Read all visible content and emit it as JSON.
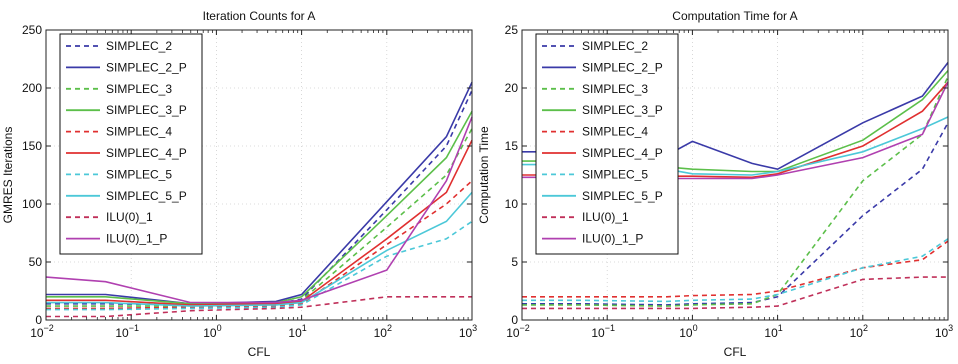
{
  "chart_data": [
    {
      "type": "line",
      "title": "Iteration Counts for A",
      "xlabel": "CFL",
      "ylabel": "GMRES Iterations",
      "xscale": "log",
      "xlim": [
        0.01,
        1000
      ],
      "ylim": [
        0,
        250
      ],
      "yticks": [
        0,
        50,
        100,
        150,
        200,
        250
      ],
      "grid": true,
      "legend_position": "top-left",
      "x": [
        0.01,
        0.05,
        0.5,
        5,
        10,
        100,
        500,
        1000
      ],
      "series": [
        {
          "name": "SIMPLEC_2",
          "color": "#3a3aa8",
          "dash": true,
          "values": [
            14,
            14,
            13,
            14,
            18,
            95,
            150,
            198
          ]
        },
        {
          "name": "SIMPLEC_2_P",
          "color": "#3a3aa8",
          "dash": false,
          "values": [
            22,
            22,
            14,
            16,
            22,
            102,
            158,
            205
          ]
        },
        {
          "name": "SIMPLEC_3",
          "color": "#5cbf4a",
          "dash": true,
          "values": [
            12,
            12,
            12,
            13,
            17,
            80,
            125,
            165
          ]
        },
        {
          "name": "SIMPLEC_3_P",
          "color": "#5cbf4a",
          "dash": false,
          "values": [
            20,
            20,
            14,
            15,
            20,
            90,
            140,
            180
          ]
        },
        {
          "name": "SIMPLEC_4",
          "color": "#e03030",
          "dash": true,
          "values": [
            10,
            10,
            11,
            12,
            14,
            65,
            100,
            120
          ]
        },
        {
          "name": "SIMPLEC_4_P",
          "color": "#e03030",
          "dash": false,
          "values": [
            17,
            17,
            13,
            14,
            16,
            70,
            110,
            155
          ]
        },
        {
          "name": "SIMPLEC_5",
          "color": "#4cc8d8",
          "dash": true,
          "values": [
            9,
            9,
            10,
            11,
            13,
            55,
            70,
            85
          ]
        },
        {
          "name": "SIMPLEC_5_P",
          "color": "#4cc8d8",
          "dash": false,
          "values": [
            15,
            15,
            12,
            13,
            15,
            60,
            85,
            110
          ]
        },
        {
          "name": "ILU(0)_1",
          "color": "#c0305a",
          "dash": true,
          "values": [
            3,
            3,
            8,
            10,
            11,
            20,
            20,
            20
          ]
        },
        {
          "name": "ILU(0)_1_P",
          "color": "#b040b0",
          "dash": false,
          "values": [
            37,
            33,
            15,
            15,
            17,
            43,
            120,
            175
          ]
        }
      ]
    },
    {
      "type": "line",
      "title": "Computation Time for A",
      "xlabel": "CFL",
      "ylabel": "Computation Time",
      "xscale": "log",
      "xlim": [
        0.01,
        1000
      ],
      "ylim": [
        0,
        25
      ],
      "yticks": [
        0,
        5,
        10,
        15,
        20,
        25
      ],
      "grid": true,
      "legend_position": "top-left",
      "x": [
        0.01,
        0.05,
        0.5,
        1,
        5,
        10,
        100,
        500,
        1000
      ],
      "series": [
        {
          "name": "SIMPLEC_2",
          "color": "#3a3aa8",
          "dash": true,
          "values": [
            1.4,
            1.4,
            1.3,
            1.4,
            1.5,
            2.0,
            9,
            13,
            17
          ]
        },
        {
          "name": "SIMPLEC_2_P",
          "color": "#3a3aa8",
          "dash": false,
          "values": [
            14.5,
            14.5,
            14.2,
            15.4,
            13.5,
            13.0,
            17,
            19.3,
            22.2
          ]
        },
        {
          "name": "SIMPLEC_3",
          "color": "#5cbf4a",
          "dash": true,
          "values": [
            1.3,
            1.3,
            1.2,
            1.3,
            1.4,
            2.2,
            12,
            16,
            21
          ]
        },
        {
          "name": "SIMPLEC_3_P",
          "color": "#5cbf4a",
          "dash": false,
          "values": [
            13.7,
            13.7,
            13.2,
            13.0,
            12.8,
            12.8,
            15.5,
            19,
            21.5
          ]
        },
        {
          "name": "SIMPLEC_4",
          "color": "#e03030",
          "dash": true,
          "values": [
            2.0,
            2.0,
            2.0,
            2.1,
            2.2,
            2.5,
            4.5,
            5.2,
            6.8
          ]
        },
        {
          "name": "SIMPLEC_4_P",
          "color": "#e03030",
          "dash": false,
          "values": [
            12.5,
            12.5,
            12.4,
            12.4,
            12.3,
            12.6,
            15,
            18,
            20.5
          ]
        },
        {
          "name": "SIMPLEC_5",
          "color": "#4cc8d8",
          "dash": true,
          "values": [
            1.7,
            1.7,
            1.6,
            1.7,
            1.8,
            2.2,
            4.5,
            5.5,
            7
          ]
        },
        {
          "name": "SIMPLEC_5_P",
          "color": "#4cc8d8",
          "dash": false,
          "values": [
            13.4,
            13.4,
            13.0,
            12.6,
            12.5,
            12.8,
            14.5,
            16.5,
            17.5
          ]
        },
        {
          "name": "ILU(0)_1",
          "color": "#c0305a",
          "dash": true,
          "values": [
            1.0,
            1.0,
            1.0,
            1.0,
            1.1,
            1.2,
            3.5,
            3.7,
            3.7
          ]
        },
        {
          "name": "ILU(0)_1_P",
          "color": "#b040b0",
          "dash": false,
          "values": [
            12.3,
            12.3,
            12.2,
            12.2,
            12.2,
            12.5,
            14,
            16,
            20.5
          ]
        }
      ]
    }
  ]
}
